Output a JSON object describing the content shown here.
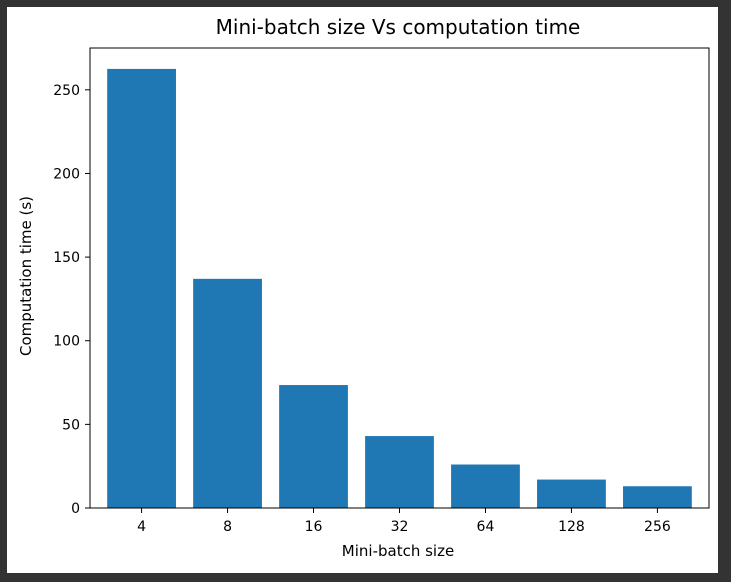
{
  "chart_data": {
    "type": "bar",
    "title": "Mini-batch size Vs computation time",
    "xlabel": "Mini-batch size",
    "ylabel": "Computation time (s)",
    "categories": [
      "4",
      "8",
      "16",
      "32",
      "64",
      "128",
      "256"
    ],
    "values": [
      262.5,
      137,
      73.5,
      43,
      26,
      17,
      13
    ],
    "ylim": [
      0,
      275
    ],
    "yticks": [
      0,
      50,
      100,
      150,
      200,
      250
    ],
    "grid": false,
    "bar_color": "#1f77b4"
  }
}
